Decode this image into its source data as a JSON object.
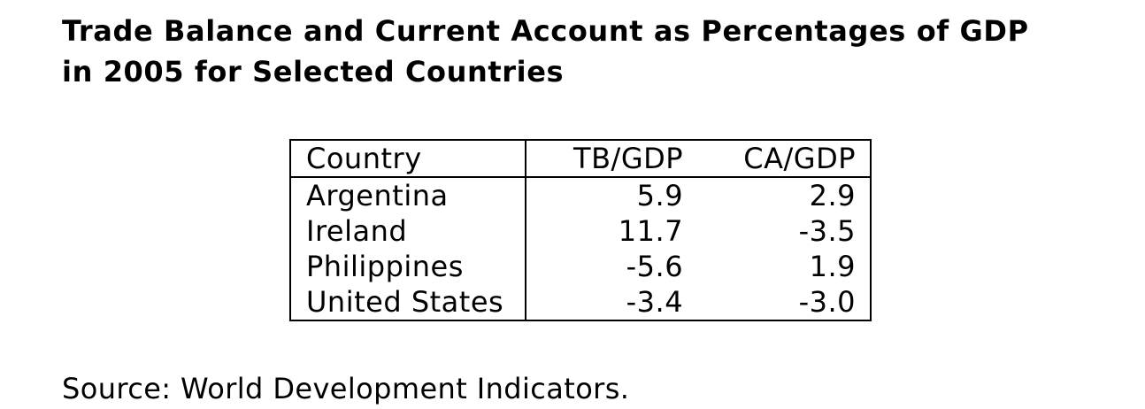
{
  "title": {
    "line1": "Trade Balance and Current Account as Percentages of GDP",
    "line2": "in 2005 for Selected Countries"
  },
  "table": {
    "headers": [
      "Country",
      "TB/GDP",
      "CA/GDP"
    ],
    "rows": [
      [
        "Argentina",
        "5.9",
        "2.9"
      ],
      [
        "Ireland",
        "11.7",
        "-3.5"
      ],
      [
        "Philippines",
        "-5.6",
        "1.9"
      ],
      [
        "United States",
        "-3.4",
        "-3.0"
      ]
    ]
  },
  "source": "Source: World Development Indicators."
}
